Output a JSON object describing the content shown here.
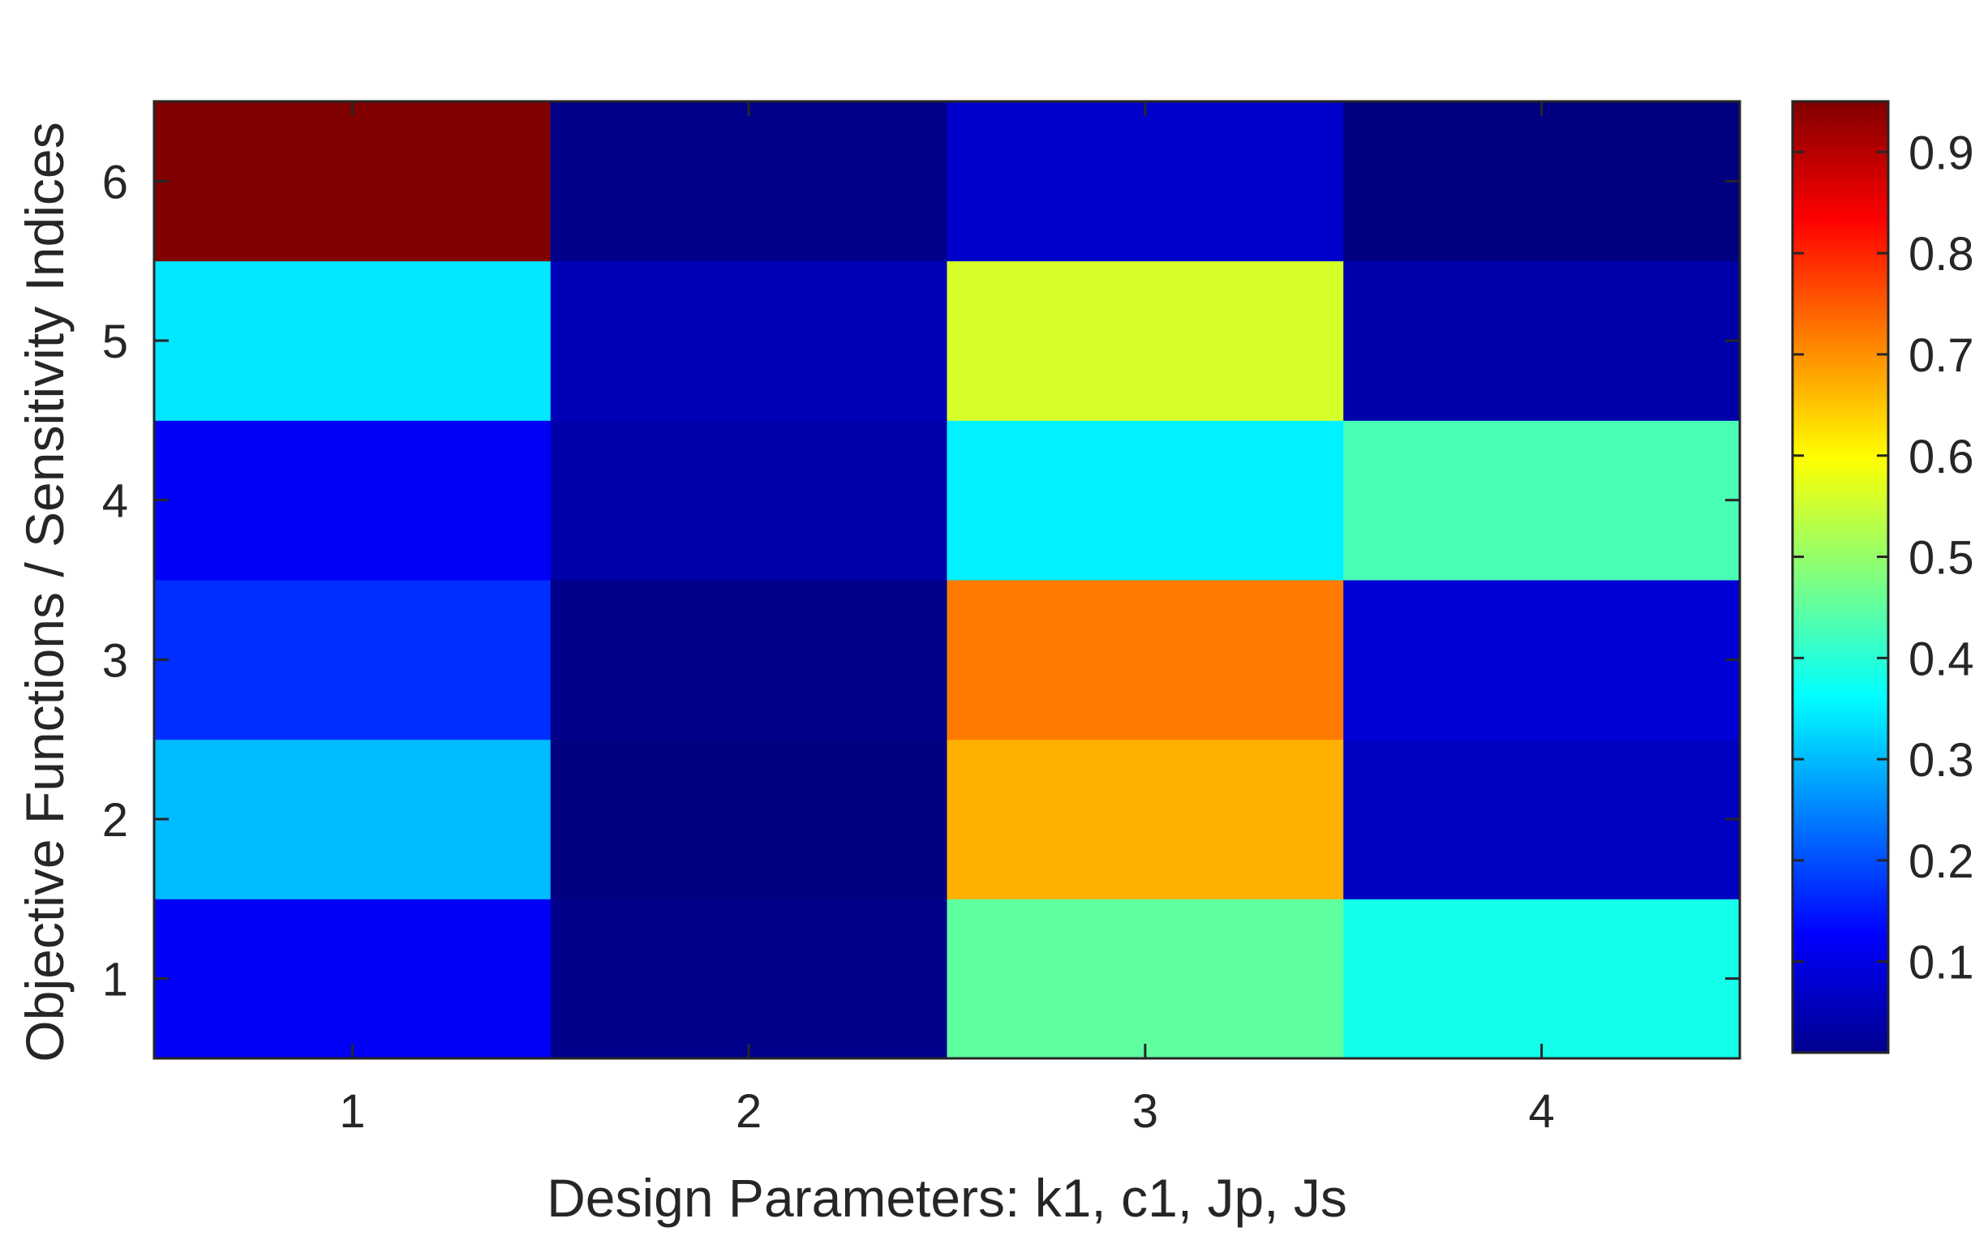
{
  "chart_data": {
    "type": "heatmap",
    "title": "",
    "xlabel": "Design Parameters: k1, c1, Jp, Js",
    "ylabel": "Objective Functions / Sensitivity Indices",
    "x": [
      1,
      2,
      3,
      4
    ],
    "y": [
      1,
      2,
      3,
      4,
      5,
      6
    ],
    "x_tick_labels": [
      "1",
      "2",
      "3",
      "4"
    ],
    "y_tick_labels": [
      "1",
      "2",
      "3",
      "4",
      "5",
      "6"
    ],
    "values": [
      [
        0.12,
        0.02,
        0.45,
        0.38
      ],
      [
        0.3,
        0.01,
        0.67,
        0.07
      ],
      [
        0.17,
        0.02,
        0.72,
        0.09
      ],
      [
        0.12,
        0.05,
        0.35,
        0.43
      ],
      [
        0.34,
        0.06,
        0.56,
        0.05
      ],
      [
        0.95,
        0.02,
        0.08,
        0.01
      ]
    ],
    "values_note_rows": "row index i corresponds to y = i+1; column index j corresponds to x = j+1",
    "colormap": "jet",
    "clim": [
      0.01,
      0.95
    ],
    "colorbar": {
      "ticks": [
        0.1,
        0.2,
        0.3,
        0.4,
        0.5,
        0.6,
        0.7,
        0.8,
        0.9
      ],
      "tick_labels": [
        "0.1",
        "0.2",
        "0.3",
        "0.4",
        "0.5",
        "0.6",
        "0.7",
        "0.8",
        "0.9"
      ],
      "placement": "right"
    },
    "grid": false
  }
}
